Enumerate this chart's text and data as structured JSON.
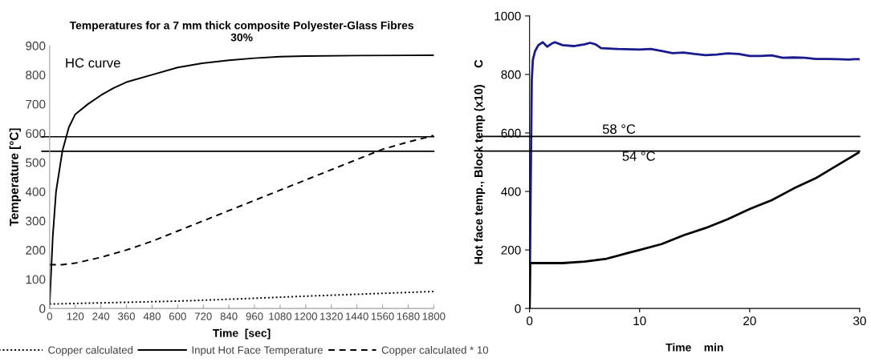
{
  "chart_data": [
    {
      "type": "line",
      "title": "Temperatures for a 7 mm thick composite Polyester-Glass Fibres\n30%",
      "xlabel": "Time  [sec]",
      "ylabel": "Temperature [°C]",
      "xlim": [
        0,
        1800
      ],
      "xticks": [
        0,
        120,
        240,
        360,
        480,
        600,
        720,
        840,
        960,
        1080,
        1200,
        1320,
        1440,
        1560,
        1680,
        1800
      ],
      "ylim": [
        0,
        900
      ],
      "yticks": [
        0,
        100,
        200,
        300,
        400,
        500,
        600,
        700,
        800,
        900
      ],
      "grid": false,
      "legend": "bottom",
      "marker": "none",
      "annotations": [
        "HC curve"
      ],
      "ref_lines": [
        {
          "axis": "y",
          "value": 588,
          "color": "#000000"
        },
        {
          "axis": "y",
          "value": 538,
          "color": "#000000"
        }
      ],
      "series": [
        {
          "name": "Copper calculated",
          "color": "#000000",
          "line_style": "dotted",
          "x": [
            0,
            300,
            600,
            900,
            1200,
            1500,
            1800
          ],
          "values": [
            15,
            20,
            25,
            33,
            42,
            50,
            58
          ]
        },
        {
          "name": "Input Hot Face Temperature",
          "color": "#000000",
          "line_style": "solid",
          "x": [
            0,
            15,
            30,
            60,
            90,
            120,
            180,
            240,
            300,
            360,
            480,
            600,
            720,
            840,
            960,
            1080,
            1200,
            1440,
            1800
          ],
          "values": [
            15,
            250,
            400,
            540,
            620,
            665,
            700,
            730,
            755,
            775,
            800,
            825,
            840,
            850,
            857,
            862,
            864,
            866,
            867
          ]
        },
        {
          "name": "Copper calculated * 10",
          "color": "#000000",
          "line_style": "dashed",
          "x": [
            0,
            60,
            120,
            240,
            360,
            480,
            600,
            720,
            840,
            960,
            1080,
            1200,
            1320,
            1440,
            1560,
            1680,
            1800
          ],
          "values": [
            150,
            150,
            155,
            175,
            200,
            230,
            265,
            300,
            335,
            370,
            405,
            440,
            475,
            510,
            545,
            570,
            592
          ]
        }
      ]
    },
    {
      "type": "line",
      "xlabel": "Time    min",
      "ylabel": "Hot face temp., Block temp (x10)     C",
      "xlim": [
        0,
        30
      ],
      "xticks": [
        0,
        10,
        20,
        30
      ],
      "ylim": [
        0,
        1000
      ],
      "yticks": [
        0,
        200,
        400,
        600,
        800,
        1000
      ],
      "grid": false,
      "marker": "none",
      "ref_lines": [
        {
          "axis": "y",
          "value": 588,
          "label": "58 °C",
          "color": "#000000"
        },
        {
          "axis": "y",
          "value": 538,
          "label": "54 °C",
          "color": "#000000"
        }
      ],
      "series": [
        {
          "color": "#1a1a8c",
          "line_style": "solid",
          "x": [
            0,
            0.1,
            0.2,
            0.3,
            0.5,
            0.8,
            1.2,
            1.6,
            2,
            2.3,
            3,
            4,
            5,
            5.5,
            6,
            6.5,
            8,
            10,
            11,
            12,
            13,
            14,
            15,
            16,
            17,
            18,
            19,
            20,
            21,
            22,
            23,
            24,
            25,
            26,
            27,
            28,
            29,
            29.5,
            30
          ],
          "values": [
            0,
            400,
            780,
            850,
            880,
            900,
            910,
            895,
            905,
            910,
            900,
            897,
            903,
            908,
            903,
            890,
            887,
            885,
            887,
            880,
            873,
            875,
            870,
            866,
            868,
            872,
            870,
            863,
            863,
            865,
            857,
            858,
            857,
            853,
            853,
            852,
            851,
            852,
            852
          ]
        },
        {
          "color": "#000000",
          "line_style": "solid",
          "x": [
            0,
            0.05,
            3,
            5,
            7,
            9,
            10,
            12,
            14,
            16,
            18,
            20,
            22,
            24,
            26,
            28,
            30
          ],
          "values": [
            0,
            155,
            155,
            160,
            170,
            190,
            200,
            220,
            250,
            275,
            305,
            340,
            370,
            410,
            445,
            490,
            535
          ]
        }
      ]
    }
  ]
}
